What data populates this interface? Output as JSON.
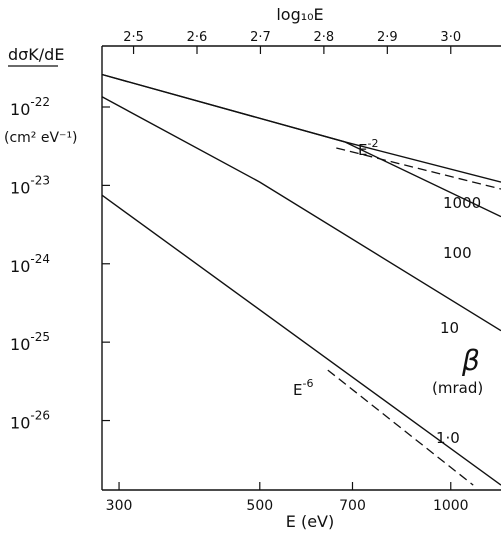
{
  "chart_data": {
    "type": "line",
    "xlabel": "E (eV)",
    "ylabel": "dσK/dE",
    "ylabel_units": "(cm² eV⁻¹)",
    "top_xlabel": "log₁₀E",
    "x_scale": "log",
    "y_scale": "log",
    "xlim": [
      282,
      1200
    ],
    "ylim": [
      1.3e-27,
      6e-22
    ],
    "x_ticks": [
      300,
      500,
      700,
      1000
    ],
    "x_tick_labels": [
      "300",
      "500",
      "700",
      "1000"
    ],
    "top_ticks": [
      2.5,
      2.6,
      2.7,
      2.8,
      2.9,
      3.0
    ],
    "top_tick_labels": [
      "2·5",
      "2·6",
      "2·7",
      "2·8",
      "2·9",
      "3·0"
    ],
    "y_ticks": [
      1e-22,
      1e-23,
      1e-24,
      1e-25,
      1e-26
    ],
    "y_tick_bases": [
      "10",
      "10",
      "10",
      "10",
      "10"
    ],
    "y_tick_exps": [
      "-22",
      "-23",
      "-24",
      "-25",
      "-26"
    ],
    "legend_title": "β",
    "legend_units": "(mrad)",
    "series": [
      {
        "name": "1000",
        "x": [
          282,
          680,
          1200
        ],
        "y": [
          2.6e-22,
          3.6e-23,
          1.1e-23
        ]
      },
      {
        "name": "100",
        "x": [
          282,
          680,
          1200
        ],
        "y": [
          2.6e-22,
          3.6e-23,
          4e-24
        ]
      },
      {
        "name": "10",
        "x": [
          282,
          500,
          1200
        ],
        "y": [
          1.35e-22,
          1.1e-23,
          1.4e-25
        ]
      },
      {
        "name": "1·0",
        "x": [
          282,
          1200
        ],
        "y": [
          7.5e-24,
          1.5e-27
        ]
      }
    ],
    "reference_lines": [
      {
        "name": "E",
        "exp": "-2",
        "style": "dashed",
        "x": [
          660,
          1200
        ],
        "y": [
          3e-23,
          9e-24
        ]
      },
      {
        "name": "E",
        "exp": "-6",
        "style": "dashed",
        "x": [
          640,
          1085
        ],
        "y": [
          4.4e-26,
          1.5e-27
        ]
      }
    ]
  }
}
